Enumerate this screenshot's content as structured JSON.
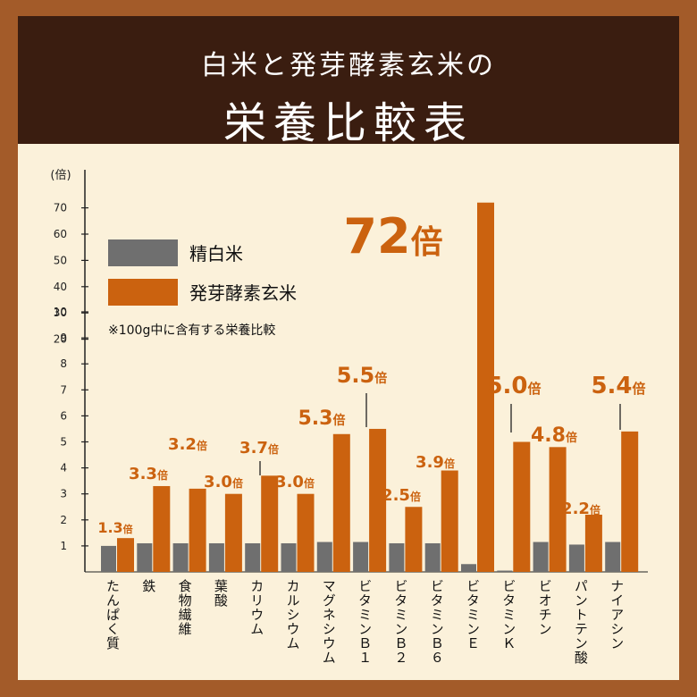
{
  "header": {
    "subtitle": "白米と発芽酵素玄米の",
    "title": "栄養比較表"
  },
  "legend": {
    "items": [
      {
        "label": "精白米",
        "color": "#6f6f6f"
      },
      {
        "label": "発芽酵素玄米",
        "color": "#cb620f"
      }
    ],
    "note": "※100g中に含有する栄養比較"
  },
  "colors": {
    "accent": "#cb620f",
    "gray": "#6f6f6f",
    "text": "#222222",
    "header_bg": "#3a1d10",
    "panel_bg": "#fbf1da",
    "frame": "#a35b29"
  },
  "chart_data": {
    "type": "bar",
    "ylabel": "(倍)",
    "y_ticks": [
      "1",
      "2",
      "3",
      "4",
      "5",
      "6",
      "7",
      "8",
      "9",
      "10",
      "20",
      "30",
      "40",
      "50",
      "60",
      "70"
    ],
    "y_scale": "piecewise: 1–10 linear, 10–70 compressed",
    "categories": [
      "たんぱく質",
      "鉄",
      "食物繊維",
      "葉酸",
      "カリウム",
      "カルシウム",
      "マグネシウム",
      "ビタミンB1",
      "ビタミンB2",
      "ビタミンB6",
      "ビタミンE",
      "ビタミンK",
      "ビオチン",
      "パントテン酸",
      "ナイアシン"
    ],
    "category_labels": [
      "たんぱく質",
      "鉄",
      "食物繊維",
      "葉酸",
      "カリウム",
      "カルシウム",
      "マグネシウム",
      "ビタミンＢ１",
      "ビタミンＢ２",
      "ビタミンＢ６",
      "ビタミンＥ",
      "ビタミンＫ",
      "ビオチン",
      "パントテン酸",
      "ナイアシン"
    ],
    "series": [
      {
        "name": "精白米",
        "values": [
          1,
          1.1,
          1.1,
          1.1,
          1.1,
          1.1,
          1.15,
          1.15,
          1.1,
          1.1,
          0.3,
          0.05,
          1.15,
          1.05,
          1.15
        ]
      },
      {
        "name": "発芽酵素玄米",
        "values": [
          1.3,
          3.3,
          3.2,
          3.0,
          3.7,
          3.0,
          5.3,
          5.5,
          2.5,
          3.9,
          72,
          5.0,
          4.8,
          2.2,
          5.4
        ]
      }
    ],
    "value_labels": [
      {
        "num": "1.3",
        "unit": "倍"
      },
      {
        "num": "3.3",
        "unit": "倍"
      },
      {
        "num": "3.2",
        "unit": "倍"
      },
      {
        "num": "3.0",
        "unit": "倍"
      },
      {
        "num": "3.7",
        "unit": "倍"
      },
      {
        "num": "3.0",
        "unit": "倍"
      },
      {
        "num": "5.3",
        "unit": "倍"
      },
      {
        "num": "5.5",
        "unit": "倍"
      },
      {
        "num": "2.5",
        "unit": "倍"
      },
      {
        "num": "3.9",
        "unit": "倍"
      },
      {
        "num": "72",
        "unit": "倍"
      },
      {
        "num": "5.0",
        "unit": "倍"
      },
      {
        "num": "4.8",
        "unit": "倍"
      },
      {
        "num": "2.2",
        "unit": "倍"
      },
      {
        "num": "5.4",
        "unit": "倍"
      }
    ],
    "grid": false,
    "legend_position": "top-left"
  }
}
